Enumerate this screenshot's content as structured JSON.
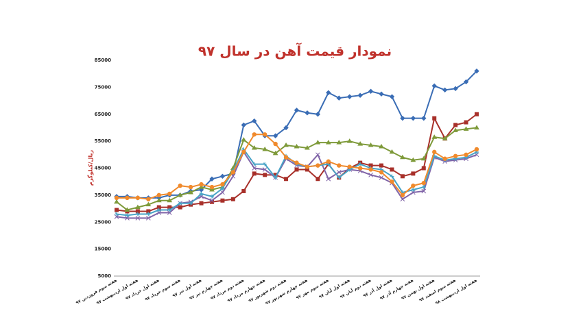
{
  "chart_data": {
    "type": "line",
    "title": "نمودار قیمت آهن در سال ۹۷",
    "y_label": "ریال/کیلوگرم",
    "categories": [
      "هفته سوم فروردین ۹۷",
      null,
      "هفته اول اردیبهشت ۹۷",
      null,
      "هفته اول خرداد ۹۷",
      null,
      "هفته سوم خرداد ۹۷",
      null,
      "هفته اول تیر ۹۷",
      null,
      "هفته چهارم تیر ۹۷",
      null,
      "هفته دوم مرداد ۹۷",
      null,
      "هفته چهارم مرداد ۹۷",
      null,
      "هفته دوم شهریور ۹۷",
      null,
      "هفته چهارم شهریور ۹۷",
      null,
      "هفته سوم مهر ۹۷",
      null,
      "هفته اول آبان ۹۷",
      null,
      "هفته دوم آبان ۹۷",
      null,
      "هفته اول آذر ۹۷",
      null,
      "هفته چهارم آذر ۹۷",
      null,
      "هفته اول بهمن ۹۷",
      null,
      "هفته سوم اسفند ۹۷",
      null,
      "هفته اول اردیبهشت ۹۸"
    ],
    "series": [
      {
        "color": "#3a6db5",
        "marker": "diamond",
        "values": [
          34500,
          34500,
          34000,
          34000,
          34000,
          35000,
          35000,
          36500,
          37000,
          41000,
          42000,
          43000,
          61000,
          62500,
          57000,
          57000,
          60000,
          66500,
          65500,
          65000,
          73000,
          71000,
          71500,
          72000,
          73500,
          72500,
          71500,
          63500,
          63500,
          63500,
          75500,
          74000,
          74500,
          77000,
          81000
        ]
      },
      {
        "color": "#a8302a",
        "marker": "square",
        "values": [
          29500,
          29000,
          29000,
          29000,
          30500,
          30500,
          30500,
          31500,
          32000,
          32500,
          33000,
          33500,
          36500,
          43000,
          42500,
          42500,
          41000,
          44500,
          44500,
          41000,
          46500,
          41500,
          45000,
          47000,
          46000,
          46000,
          44500,
          42000,
          43000,
          45000,
          63500,
          56000,
          61000,
          62000,
          65000
        ]
      },
      {
        "color": "#7e9a3a",
        "marker": "triangle",
        "values": [
          32500,
          29500,
          30500,
          31500,
          33000,
          33000,
          35000,
          36000,
          38000,
          37000,
          38000,
          45000,
          55500,
          52500,
          52000,
          50500,
          53500,
          53000,
          52500,
          54500,
          54500,
          54500,
          55000,
          54000,
          53500,
          53000,
          51000,
          49000,
          48000,
          48500,
          56500,
          56000,
          59000,
          59500,
          60000
        ]
      },
      {
        "color": "#8064a8",
        "marker": "x",
        "values": [
          27000,
          26500,
          26500,
          26500,
          28500,
          28500,
          32000,
          32500,
          34500,
          33000,
          36000,
          42000,
          51000,
          45000,
          44500,
          41500,
          48500,
          46000,
          45500,
          50000,
          41000,
          43500,
          44500,
          44000,
          42500,
          41500,
          39500,
          33500,
          36000,
          36500,
          49000,
          47500,
          48000,
          48500,
          50000
        ]
      },
      {
        "color": "#47a3c6",
        "marker": "star",
        "values": [
          28000,
          27500,
          28000,
          28000,
          29500,
          29500,
          32000,
          32000,
          35500,
          34500,
          37500,
          44000,
          52000,
          46500,
          46500,
          41500,
          49500,
          46500,
          45500,
          46000,
          46500,
          41500,
          44500,
          46500,
          45000,
          44500,
          42000,
          36000,
          37000,
          38000,
          49500,
          48000,
          48500,
          49000,
          51000
        ]
      },
      {
        "color": "#f08a2c",
        "marker": "circle",
        "values": [
          34000,
          34000,
          34000,
          33500,
          35000,
          35500,
          38500,
          38000,
          39000,
          38000,
          39000,
          43500,
          51000,
          57500,
          57500,
          54000,
          49000,
          47000,
          45500,
          46000,
          47500,
          46000,
          45500,
          45000,
          44500,
          43500,
          40000,
          35000,
          38500,
          39500,
          51000,
          48500,
          49500,
          50000,
          52000
        ]
      }
    ],
    "ylim": [
      5000,
      85000
    ],
    "yticks": [
      5000,
      15000,
      25000,
      35000,
      45000,
      55000,
      65000,
      75000,
      85000
    ]
  }
}
